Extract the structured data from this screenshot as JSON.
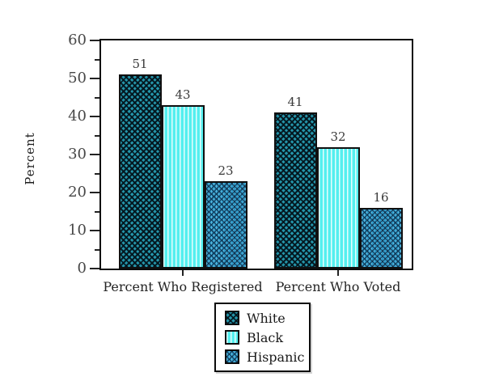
{
  "chart_data": {
    "type": "bar",
    "title": "",
    "ylabel": "Percent",
    "xlabel": "",
    "ylim": [
      0,
      60
    ],
    "y_major_ticks": [
      0,
      10,
      20,
      30,
      40,
      50,
      60
    ],
    "y_minor_step": 5,
    "grid": false,
    "bar_value_labels_shown": true,
    "legend_position": "bottom-center",
    "categories": [
      "Percent Who Registered",
      "Percent Who Voted"
    ],
    "series": [
      {
        "name": "White",
        "values": [
          51,
          41
        ],
        "pattern": "dark-teal-crosshatch",
        "color": "#2596ab"
      },
      {
        "name": "Black",
        "values": [
          43,
          32
        ],
        "pattern": "cyan-vertical-stripes",
        "color": "#54efef"
      },
      {
        "name": "Hispanic",
        "values": [
          23,
          16
        ],
        "pattern": "blue-crosshatch",
        "color": "#2f9ccc"
      }
    ]
  }
}
